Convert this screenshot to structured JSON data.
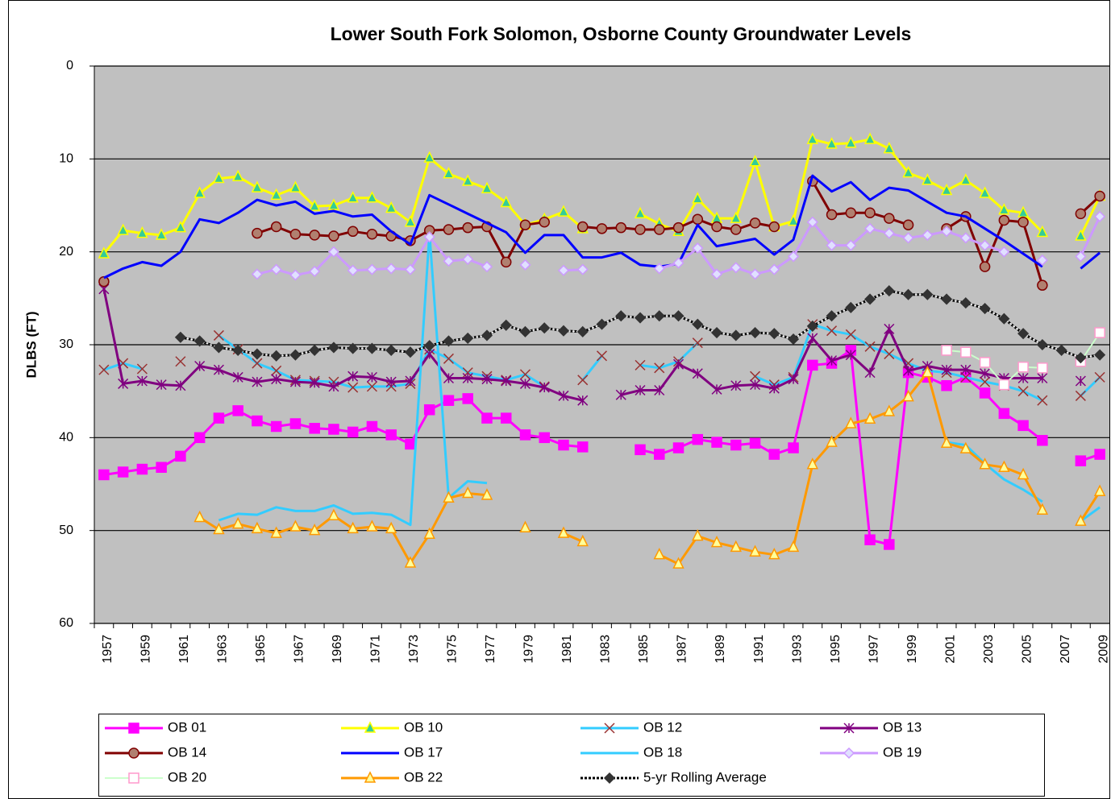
{
  "chart_data": {
    "type": "line",
    "title": "Lower South Fork Solomon, Osborne County Groundwater Levels",
    "y_label": "DLBS (FT)",
    "ylim": [
      0,
      60
    ],
    "y_reversed": true,
    "yticks": [
      0,
      10,
      20,
      30,
      40,
      50,
      60
    ],
    "grid": true,
    "legend": "bottom",
    "background": "#c0c0c0",
    "categories": [
      "1957",
      null,
      "1959",
      null,
      "1961",
      null,
      "1963",
      null,
      "1965",
      null,
      "1967",
      null,
      "1969",
      null,
      "1971",
      null,
      "1973",
      null,
      "1975",
      null,
      "1977",
      null,
      "1979",
      null,
      "1981",
      null,
      "1983",
      null,
      "1985",
      null,
      "1987",
      null,
      "1989",
      null,
      "1991",
      null,
      "1993",
      null,
      "1995",
      null,
      "1997",
      null,
      "1999",
      null,
      "2001",
      null,
      "2003",
      null,
      "2005",
      null,
      "2007",
      null,
      "2009"
    ],
    "series": [
      {
        "name": "OB 01",
        "color": "#ff00ff",
        "marker": "square",
        "marker_fill": "#ff00ff",
        "marker_stroke": "#ff00ff",
        "values": [
          44,
          43.7,
          43.4,
          43.2,
          42,
          40,
          37.9,
          37.1,
          38.2,
          38.8,
          38.5,
          39,
          39.1,
          39.4,
          38.8,
          39.7,
          40.7,
          37,
          36,
          35.8,
          37.9,
          37.9,
          39.7,
          40,
          40.8,
          41,
          null,
          null,
          41.3,
          41.8,
          41.1,
          40.2,
          40.5,
          40.8,
          40.6,
          41.8,
          41.1,
          32.2,
          32,
          30.6,
          51,
          51.5,
          33,
          33.5,
          34.4,
          33.5,
          35.2,
          37.4,
          38.7,
          40.3,
          null,
          42.5,
          41.8
        ]
      },
      {
        "name": "OB 10",
        "color": "#ffff00",
        "marker": "triangle",
        "marker_fill": "#33cc99",
        "marker_stroke": "#ffff00",
        "values": [
          20.2,
          17.7,
          18,
          18.2,
          17.4,
          13.7,
          12.1,
          11.9,
          13.1,
          13.9,
          13.1,
          15.1,
          15,
          14.2,
          14.2,
          15.3,
          16.8,
          9.9,
          11.6,
          12.4,
          13.2,
          14.7,
          17.1,
          16.5,
          15.7,
          17.5,
          null,
          null,
          15.9,
          17,
          17.8,
          14.3,
          16.4,
          16.4,
          10.3,
          17.3,
          16.7,
          7.9,
          8.4,
          8.3,
          7.9,
          8.9,
          11.5,
          12.3,
          13.4,
          12.3,
          13.7,
          15.5,
          15.8,
          17.9,
          null,
          18.3,
          14
        ]
      },
      {
        "name": "OB 12",
        "color": "#33ccff",
        "marker": "x",
        "marker_fill": "none",
        "marker_stroke": "#993333",
        "values": [
          32.7,
          32,
          32.6,
          null,
          31.8,
          null,
          29,
          30.5,
          32,
          32.8,
          33.8,
          33.9,
          34,
          34.6,
          34.5,
          34.5,
          34.2,
          30.5,
          31.5,
          33,
          33.4,
          33.8,
          33.2,
          34.5,
          null,
          33.8,
          31.2,
          null,
          32.2,
          32.5,
          31.8,
          29.8,
          null,
          null,
          33.4,
          34.3,
          33.5,
          27.8,
          28.5,
          28.9,
          30.2,
          31,
          32,
          32.8,
          33,
          33.5,
          34,
          34.4,
          35,
          36,
          null,
          35.5,
          33.5
        ]
      },
      {
        "name": "OB 13",
        "color": "#800080",
        "marker": "asterisk",
        "marker_fill": "none",
        "marker_stroke": "#800080",
        "values": [
          24,
          34.2,
          33.9,
          34.3,
          34.4,
          32.3,
          32.7,
          33.5,
          34,
          33.7,
          34,
          34.1,
          34.5,
          33.4,
          33.5,
          34,
          33.9,
          31,
          33.6,
          33.6,
          33.7,
          33.9,
          34.2,
          34.6,
          35.5,
          36,
          null,
          35.4,
          34.9,
          34.9,
          32.1,
          33.1,
          34.8,
          34.4,
          34.3,
          34.7,
          33.7,
          29.3,
          31.7,
          31.1,
          33,
          28.3,
          32.8,
          32.3,
          32.7,
          32.7,
          33.1,
          33.6,
          33.6,
          33.6,
          null,
          33.9,
          null
        ]
      },
      {
        "name": "OB 14",
        "color": "#800000",
        "marker": "circle",
        "marker_fill": "#b08070",
        "marker_stroke": "#800000",
        "values": [
          23.2,
          null,
          null,
          null,
          null,
          null,
          null,
          null,
          18,
          17.3,
          18.1,
          18.2,
          18.3,
          17.8,
          18.1,
          18.3,
          18.8,
          17.7,
          17.6,
          17.4,
          17.3,
          21.1,
          17.1,
          16.8,
          null,
          17.3,
          17.5,
          17.4,
          17.6,
          17.6,
          17.4,
          16.5,
          17.3,
          17.6,
          16.9,
          17.3,
          null,
          12.4,
          16,
          15.8,
          15.8,
          16.4,
          17.1,
          null,
          17.5,
          16.2,
          21.6,
          16.6,
          16.8,
          23.6,
          null,
          15.9,
          14
        ]
      },
      {
        "name": "OB 17",
        "color": "#0000ff",
        "marker": "none",
        "marker_fill": "none",
        "marker_stroke": "#0000ff",
        "values": [
          22.8,
          21.8,
          21.1,
          21.5,
          20,
          16.5,
          16.9,
          15.8,
          14.4,
          15,
          14.6,
          15.9,
          15.6,
          16.2,
          16,
          17.8,
          19.2,
          13.9,
          14.9,
          15.9,
          16.9,
          17.9,
          20.1,
          18.2,
          18.2,
          20.6,
          20.6,
          20.1,
          21.4,
          21.6,
          21.3,
          17.1,
          19.4,
          19,
          18.6,
          20.3,
          18.7,
          11.8,
          13.5,
          12.5,
          14.4,
          13.1,
          13.4,
          14.6,
          15.8,
          16.2,
          17.5,
          18.8,
          20.2,
          21.6,
          null,
          21.8,
          20.1
        ]
      },
      {
        "name": "OB 18",
        "color": "#33ccff",
        "marker": "none",
        "marker_fill": "none",
        "marker_stroke": "#33ccff",
        "values": [
          null,
          null,
          null,
          null,
          null,
          null,
          48.9,
          48.2,
          48.3,
          47.5,
          47.9,
          47.9,
          47.3,
          48.2,
          48.1,
          48.3,
          49.4,
          18,
          46.5,
          44.7,
          44.9,
          null,
          null,
          null,
          null,
          null,
          null,
          null,
          null,
          null,
          null,
          null,
          null,
          null,
          null,
          null,
          null,
          null,
          null,
          null,
          null,
          null,
          null,
          null,
          40.5,
          40.8,
          42.8,
          44.5,
          45.6,
          46.9,
          null,
          49,
          47.5
        ]
      },
      {
        "name": "OB 19",
        "color": "#cc99ff",
        "marker": "diamond",
        "marker_fill": "#e0e0ff",
        "marker_stroke": "#cc99ff",
        "values": [
          null,
          null,
          null,
          null,
          null,
          null,
          null,
          null,
          22.4,
          21.9,
          22.5,
          22.1,
          20,
          22,
          21.9,
          21.8,
          21.9,
          18.4,
          21,
          20.8,
          21.6,
          null,
          21.4,
          null,
          22,
          21.9,
          null,
          null,
          null,
          21.8,
          21.2,
          19.6,
          22.4,
          21.7,
          22.4,
          21.9,
          20.5,
          16.8,
          19.3,
          19.3,
          17.5,
          18,
          18.5,
          18.2,
          17.8,
          18.5,
          19.3,
          20,
          null,
          20.9,
          null,
          20.5,
          16.2
        ]
      },
      {
        "name": "OB 20",
        "color": "#ccffcc",
        "marker": "square",
        "marker_fill": "#ffffff",
        "marker_stroke": "#ff99cc",
        "values": [
          null,
          null,
          null,
          null,
          null,
          null,
          null,
          null,
          null,
          null,
          null,
          null,
          null,
          null,
          null,
          null,
          null,
          null,
          null,
          null,
          null,
          null,
          null,
          null,
          null,
          null,
          null,
          null,
          null,
          null,
          null,
          null,
          null,
          null,
          null,
          null,
          null,
          null,
          null,
          null,
          null,
          null,
          null,
          null,
          30.6,
          30.8,
          31.9,
          34.3,
          32.4,
          32.5,
          null,
          31.8,
          28.7
        ]
      },
      {
        "name": "OB 22",
        "color": "#ff9900",
        "marker": "triangle",
        "marker_fill": "#ffff99",
        "marker_stroke": "#ff9900",
        "values": [
          null,
          null,
          null,
          null,
          null,
          48.6,
          49.9,
          49.3,
          49.8,
          50.3,
          49.6,
          50,
          48.4,
          49.8,
          49.6,
          49.8,
          53.5,
          50.4,
          46.5,
          46,
          46.2,
          null,
          49.7,
          null,
          50.3,
          51.2,
          null,
          null,
          null,
          52.6,
          53.6,
          50.6,
          51.3,
          51.8,
          52.3,
          52.6,
          51.8,
          42.9,
          40.5,
          38.5,
          38,
          37.2,
          35.6,
          33,
          40.6,
          41.2,
          42.9,
          43.2,
          44,
          47.8,
          null,
          49,
          45.8
        ]
      },
      {
        "name": "5-yr Rolling  Average",
        "color": "#000000",
        "dashed": true,
        "marker": "diamond",
        "marker_fill": "#333333",
        "marker_stroke": "#333333",
        "values": [
          null,
          null,
          null,
          null,
          29.2,
          29.6,
          30.3,
          30.6,
          31,
          31.2,
          31.1,
          30.6,
          30.3,
          30.4,
          30.4,
          30.6,
          30.8,
          30.1,
          29.6,
          29.3,
          29,
          27.9,
          28.6,
          28.2,
          28.5,
          28.6,
          27.8,
          26.9,
          27.1,
          26.9,
          26.9,
          27.8,
          28.7,
          29,
          28.7,
          28.8,
          29.4,
          28,
          26.9,
          26,
          25.1,
          24.2,
          24.6,
          24.6,
          25.1,
          25.5,
          26.1,
          27.2,
          28.8,
          30,
          30.6,
          31.4,
          31.1
        ]
      }
    ]
  }
}
